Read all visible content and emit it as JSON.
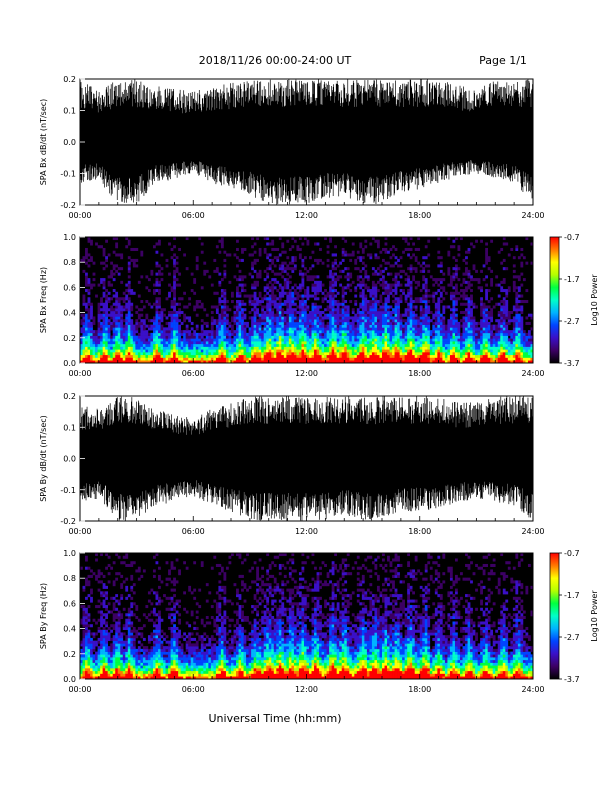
{
  "header": {
    "title": "2018/11/26  00:00-24:00 UT",
    "page": "Page 1/1"
  },
  "xlabel": "Universal Time (hh:mm)",
  "x_ticks": [
    "00:00",
    "06:00",
    "12:00",
    "18:00",
    "24:00"
  ],
  "colorbar_label": "Log10 Power",
  "colors": {
    "trace": "#000000",
    "spectrogram_background": "#000000",
    "colormap": [
      "#000000",
      "#3c0064",
      "#3a10c8",
      "#0044ff",
      "#00b4ff",
      "#00ffc8",
      "#00ff40",
      "#b4ff00",
      "#ffff00",
      "#ff7800",
      "#ff0000"
    ]
  },
  "chart_data": [
    {
      "type": "line",
      "ylabel": "SPA Bx dB/dt (nT/sec)",
      "xlim": [
        "00:00",
        "24:00"
      ],
      "ylim": [
        -0.2,
        0.2
      ],
      "y_ticks": [
        "0.2",
        "0.1",
        "0.0",
        "-0.1",
        "-0.2"
      ],
      "series": [
        {
          "x_hours": [
            0,
            1,
            2,
            2.5,
            3,
            4,
            5,
            6,
            7,
            8,
            9,
            10,
            11,
            12,
            13,
            14,
            15,
            16,
            17,
            18,
            19,
            20,
            21,
            22,
            23,
            24
          ],
          "y_max": [
            0.2,
            0.17,
            0.2,
            0.2,
            0.2,
            0.18,
            0.17,
            0.16,
            0.18,
            0.19,
            0.2,
            0.2,
            0.2,
            0.2,
            0.2,
            0.2,
            0.2,
            0.2,
            0.2,
            0.2,
            0.2,
            0.18,
            0.17,
            0.2,
            0.2,
            0.2
          ],
          "y_min": [
            -0.13,
            -0.12,
            -0.2,
            -0.2,
            -0.2,
            -0.13,
            -0.12,
            -0.1,
            -0.13,
            -0.15,
            -0.17,
            -0.2,
            -0.2,
            -0.2,
            -0.18,
            -0.17,
            -0.2,
            -0.2,
            -0.16,
            -0.15,
            -0.13,
            -0.11,
            -0.1,
            -0.12,
            -0.13,
            -0.2
          ]
        }
      ]
    },
    {
      "type": "heatmap",
      "ylabel": "SPA Bx Freq (Hz)",
      "xlim": [
        "00:00",
        "24:00"
      ],
      "ylim": [
        0,
        1.0
      ],
      "y_ticks": [
        "1.0",
        "0.8",
        "0.6",
        "0.4",
        "0.2",
        "0.0"
      ],
      "colorbar": {
        "range": [
          -3.7,
          -0.7
        ],
        "ticks": [
          "-0.7",
          "-1.7",
          "-2.7",
          "-3.7"
        ],
        "label": "Log10 Power"
      },
      "activity_hours": [
        0.4,
        1.3,
        2.0,
        2.6,
        4.1,
        5.0,
        7.5,
        8.5,
        9.3,
        10.0,
        10.6,
        11.2,
        11.8,
        12.5,
        13.4,
        14.0,
        15.0,
        15.6,
        16.2,
        16.8,
        17.5,
        18.3,
        19.0,
        19.8,
        20.6,
        21.5,
        22.4,
        23.2
      ]
    },
    {
      "type": "line",
      "ylabel": "SPA By dB/dt (nT/sec)",
      "xlim": [
        "00:00",
        "24:00"
      ],
      "ylim": [
        -0.2,
        0.2
      ],
      "y_ticks": [
        "0.2",
        "0.1",
        "0.0",
        "-0.1",
        "-0.2"
      ],
      "series": [
        {
          "x_hours": [
            0,
            1,
            2,
            2.5,
            3,
            4,
            5,
            6,
            7,
            8,
            9,
            10,
            11,
            12,
            13,
            14,
            15,
            16,
            17,
            18,
            19,
            20,
            21,
            22,
            23,
            24
          ],
          "y_max": [
            0.17,
            0.16,
            0.2,
            0.2,
            0.2,
            0.16,
            0.14,
            0.13,
            0.16,
            0.18,
            0.2,
            0.2,
            0.2,
            0.2,
            0.2,
            0.2,
            0.2,
            0.2,
            0.2,
            0.2,
            0.2,
            0.18,
            0.18,
            0.2,
            0.2,
            0.2
          ],
          "y_min": [
            -0.14,
            -0.13,
            -0.2,
            -0.2,
            -0.2,
            -0.15,
            -0.14,
            -0.12,
            -0.15,
            -0.17,
            -0.2,
            -0.2,
            -0.2,
            -0.2,
            -0.2,
            -0.18,
            -0.2,
            -0.2,
            -0.17,
            -0.17,
            -0.16,
            -0.14,
            -0.13,
            -0.14,
            -0.15,
            -0.2
          ]
        }
      ]
    },
    {
      "type": "heatmap",
      "ylabel": "SPA By Freq (Hz)",
      "xlim": [
        "00:00",
        "24:00"
      ],
      "ylim": [
        0,
        1.0
      ],
      "y_ticks": [
        "1.0",
        "0.8",
        "0.6",
        "0.4",
        "0.2",
        "0.0"
      ],
      "colorbar": {
        "range": [
          -3.7,
          -0.7
        ],
        "ticks": [
          "-0.7",
          "-1.7",
          "-2.7",
          "-3.7"
        ],
        "label": "Log10 Power"
      },
      "activity_hours": [
        0.4,
        1.3,
        2.0,
        2.6,
        4.1,
        5.0,
        7.5,
        8.5,
        9.3,
        10.0,
        10.6,
        11.2,
        11.8,
        12.5,
        13.4,
        14.0,
        15.0,
        15.6,
        16.2,
        16.8,
        17.5,
        18.3,
        19.0,
        19.8,
        20.6,
        21.5,
        22.4,
        23.2
      ]
    }
  ]
}
